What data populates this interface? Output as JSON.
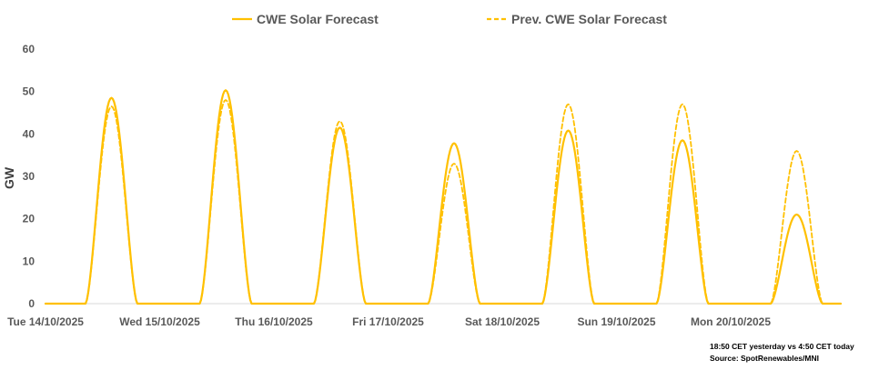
{
  "chart_data": {
    "type": "line",
    "title": "",
    "xlabel": "",
    "ylabel": "GW",
    "ylim": [
      0,
      60
    ],
    "yticks": [
      0,
      10,
      20,
      30,
      40,
      50,
      60
    ],
    "grid": false,
    "legend_position": "top",
    "categories": [
      "Tue 14/10/2025",
      "Wed 15/10/2025",
      "Thu 16/10/2025",
      "Fri 17/10/2025",
      "Sat 18/10/2025",
      "Sun 19/10/2025",
      "Mon 20/10/2025"
    ],
    "series": [
      {
        "name": "CWE Solar Forecast",
        "style": "solid",
        "color": "#FFC000",
        "daily_peak_gw": [
          48.5,
          50.3,
          41.5,
          37.8,
          40.8,
          38.5,
          21.0
        ]
      },
      {
        "name": "Prev. CWE Solar Forecast",
        "style": "dashed",
        "color": "#FFC000",
        "daily_peak_gw": [
          46.5,
          48.0,
          43.0,
          33.0,
          47.0,
          47.0,
          36.0
        ]
      }
    ],
    "annotations": [
      "18:50 CET yesterday vs  4:50 CET today",
      "Source: SpotRenewables/MNI"
    ]
  }
}
